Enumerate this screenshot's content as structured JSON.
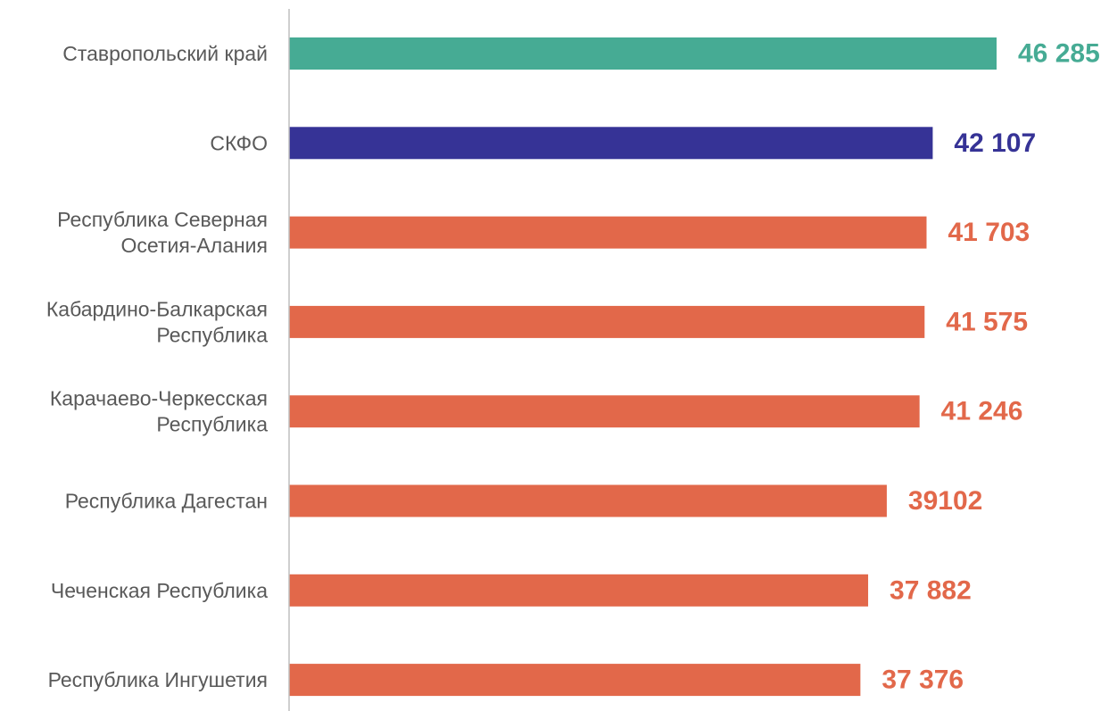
{
  "chart_data": {
    "type": "bar",
    "orientation": "horizontal",
    "title": "",
    "xlabel": "",
    "ylabel": "",
    "grid": false,
    "legend": "none",
    "xlim": [
      0,
      46285
    ],
    "categories": [
      [
        "Ставропольский край"
      ],
      [
        "СКФО"
      ],
      [
        "Республика Северная",
        "Осетия-Алания"
      ],
      [
        "Кабардино-Балкарская",
        "Республика"
      ],
      [
        "Карачаево-Черкесская",
        "Республика"
      ],
      [
        "Республика Дагестан"
      ],
      [
        "Чеченская Республика"
      ],
      [
        "Республика Ингушетия"
      ]
    ],
    "values": [
      46285,
      42107,
      41703,
      41575,
      41246,
      39102,
      37882,
      37376
    ],
    "value_labels": [
      "46 285",
      "42 107",
      "41 703",
      "41 575",
      "41 246",
      "39102",
      "37 882",
      "37 376"
    ],
    "bar_colors": [
      "#46ab94",
      "#363396",
      "#e2684a",
      "#e2684a",
      "#e2684a",
      "#e2684a",
      "#e2684a",
      "#e2684a"
    ],
    "colors": {
      "highlight_region": "#46ab94",
      "district": "#363396",
      "regions": "#e2684a",
      "category_text": "#595959",
      "axis": "#bfbfbf"
    }
  }
}
